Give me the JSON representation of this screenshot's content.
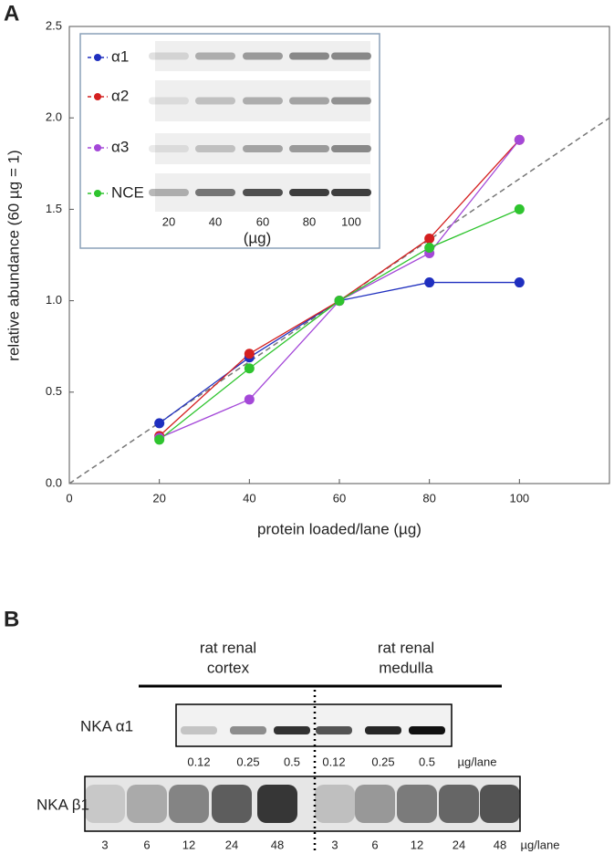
{
  "chart_data": {
    "type": "line",
    "panel_label": "A",
    "xlabel": "protein loaded/lane (µg)",
    "ylabel": "relative abundance (60 µg = 1)",
    "x": [
      20,
      40,
      60,
      80,
      100
    ],
    "series": [
      {
        "name": "α1",
        "color": "#1f2fbf",
        "values": [
          0.33,
          0.69,
          1.0,
          1.1,
          1.1
        ]
      },
      {
        "name": "α2",
        "color": "#d42020",
        "values": [
          0.26,
          0.71,
          1.0,
          1.34,
          1.88
        ]
      },
      {
        "name": "α3",
        "color": "#a448d8",
        "values": [
          0.25,
          0.46,
          1.0,
          1.26,
          1.88
        ]
      },
      {
        "name": "NCE",
        "color": "#2ec42e",
        "values": [
          0.24,
          0.63,
          1.0,
          1.29,
          1.5
        ]
      }
    ],
    "reference_line": {
      "color": "#777777",
      "x": [
        0,
        120
      ],
      "values": [
        0,
        2
      ]
    },
    "xlim": [
      0,
      120
    ],
    "ylim": [
      0,
      2.5
    ],
    "xticks": [
      0,
      20,
      40,
      60,
      80,
      100
    ],
    "yticks": [
      {
        "value": 0,
        "label": "0.0"
      },
      0.5,
      {
        "value": 1,
        "label": "1.0"
      },
      1.5,
      {
        "value": 2,
        "label": "2.0"
      },
      2.5
    ],
    "inset": {
      "lanes": [
        "20",
        "40",
        "60",
        "80",
        "100"
      ],
      "unit": "(µg)"
    }
  },
  "panel_b": {
    "panel_label": "B",
    "groups": [
      [
        "rat renal",
        "cortex"
      ],
      [
        "rat renal",
        "medulla"
      ]
    ],
    "rows": [
      {
        "label": "NKA α1",
        "lanes": [
          "0.12",
          "0.25",
          "0.5",
          "0.12",
          "0.25",
          "0.5"
        ],
        "unit": "µg/lane"
      },
      {
        "label": "NKA β1",
        "lanes": [
          "3",
          "6",
          "12",
          "24",
          "48",
          "3",
          "6",
          "12",
          "24",
          "48"
        ],
        "unit": "µg/lane"
      }
    ]
  }
}
